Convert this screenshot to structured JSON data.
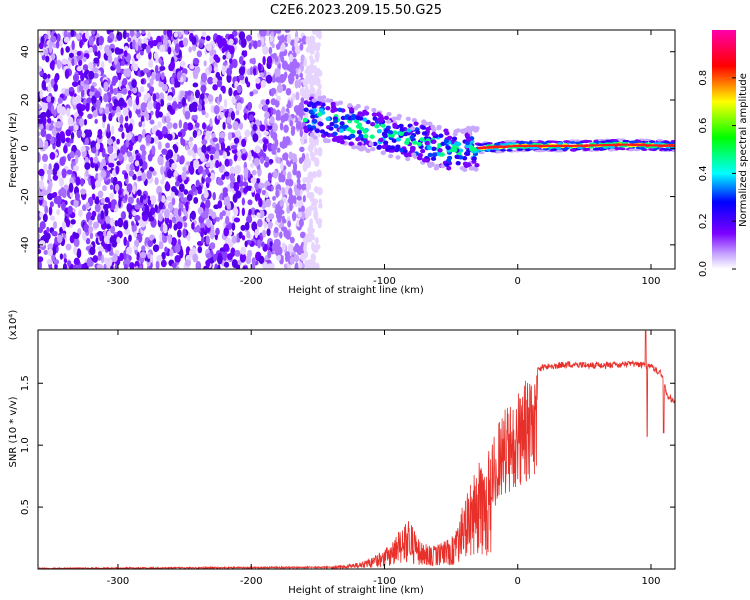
{
  "figure": {
    "title": "C2E6.2023.209.15.50.G25"
  },
  "chart_data": [
    {
      "type": "heatmap",
      "xlabel": "Height of straight line (km)",
      "ylabel": "Frequency (Hz)",
      "xlim": [
        -360,
        118
      ],
      "ylim": [
        -50,
        49
      ],
      "xticks": [
        -300,
        -200,
        -100,
        0,
        100
      ],
      "yticks": [
        -40,
        -20,
        0,
        20,
        40
      ],
      "colorbar": {
        "label": "Normalized spectral amplitude",
        "range": [
          0.0,
          1.0
        ],
        "ticks": [
          "0.0",
          "0.2",
          "0.4",
          "0.6",
          "0.8"
        ],
        "colors": [
          "#ffffff",
          "#7a00ff",
          "#0000ff",
          "#00ffff",
          "#00ff00",
          "#ffff00",
          "#ff0000",
          "#ff00aa"
        ]
      },
      "ridge": {
        "x": [
          -160,
          -130,
          -100,
          -70,
          -50,
          -30,
          0,
          40,
          80,
          118
        ],
        "y": [
          14,
          10,
          6,
          2,
          -1,
          0,
          1,
          1,
          1.5,
          1
        ]
      },
      "noise_region_x": [
        -360,
        -160
      ]
    },
    {
      "type": "line",
      "xlabel": "Height of straight line (km)",
      "ylabel": "SNR (10 * v/v)",
      "multiplier": "(x10⁴)",
      "xlim": [
        -360,
        118
      ],
      "ylim": [
        0,
        1.93
      ],
      "xticks": [
        -300,
        -200,
        -100,
        0,
        100
      ],
      "yticks": [
        0.5,
        1.0,
        1.5
      ],
      "ytick_labels": [
        "0.5",
        "1.0",
        "1.5"
      ],
      "color": "#e8302a",
      "envelope": {
        "x": [
          -360,
          -140,
          -120,
          -100,
          -90,
          -82,
          -75,
          -65,
          -50,
          -40,
          -30,
          -20,
          -10,
          0,
          10,
          20,
          40,
          60,
          90,
          100,
          108,
          112,
          118
        ],
        "y": [
          0.01,
          0.02,
          0.05,
          0.15,
          0.3,
          0.45,
          0.25,
          0.18,
          0.25,
          0.55,
          0.85,
          1.05,
          1.3,
          1.45,
          1.6,
          1.66,
          1.68,
          1.67,
          1.68,
          1.66,
          1.6,
          1.43,
          1.37
        ]
      }
    }
  ]
}
